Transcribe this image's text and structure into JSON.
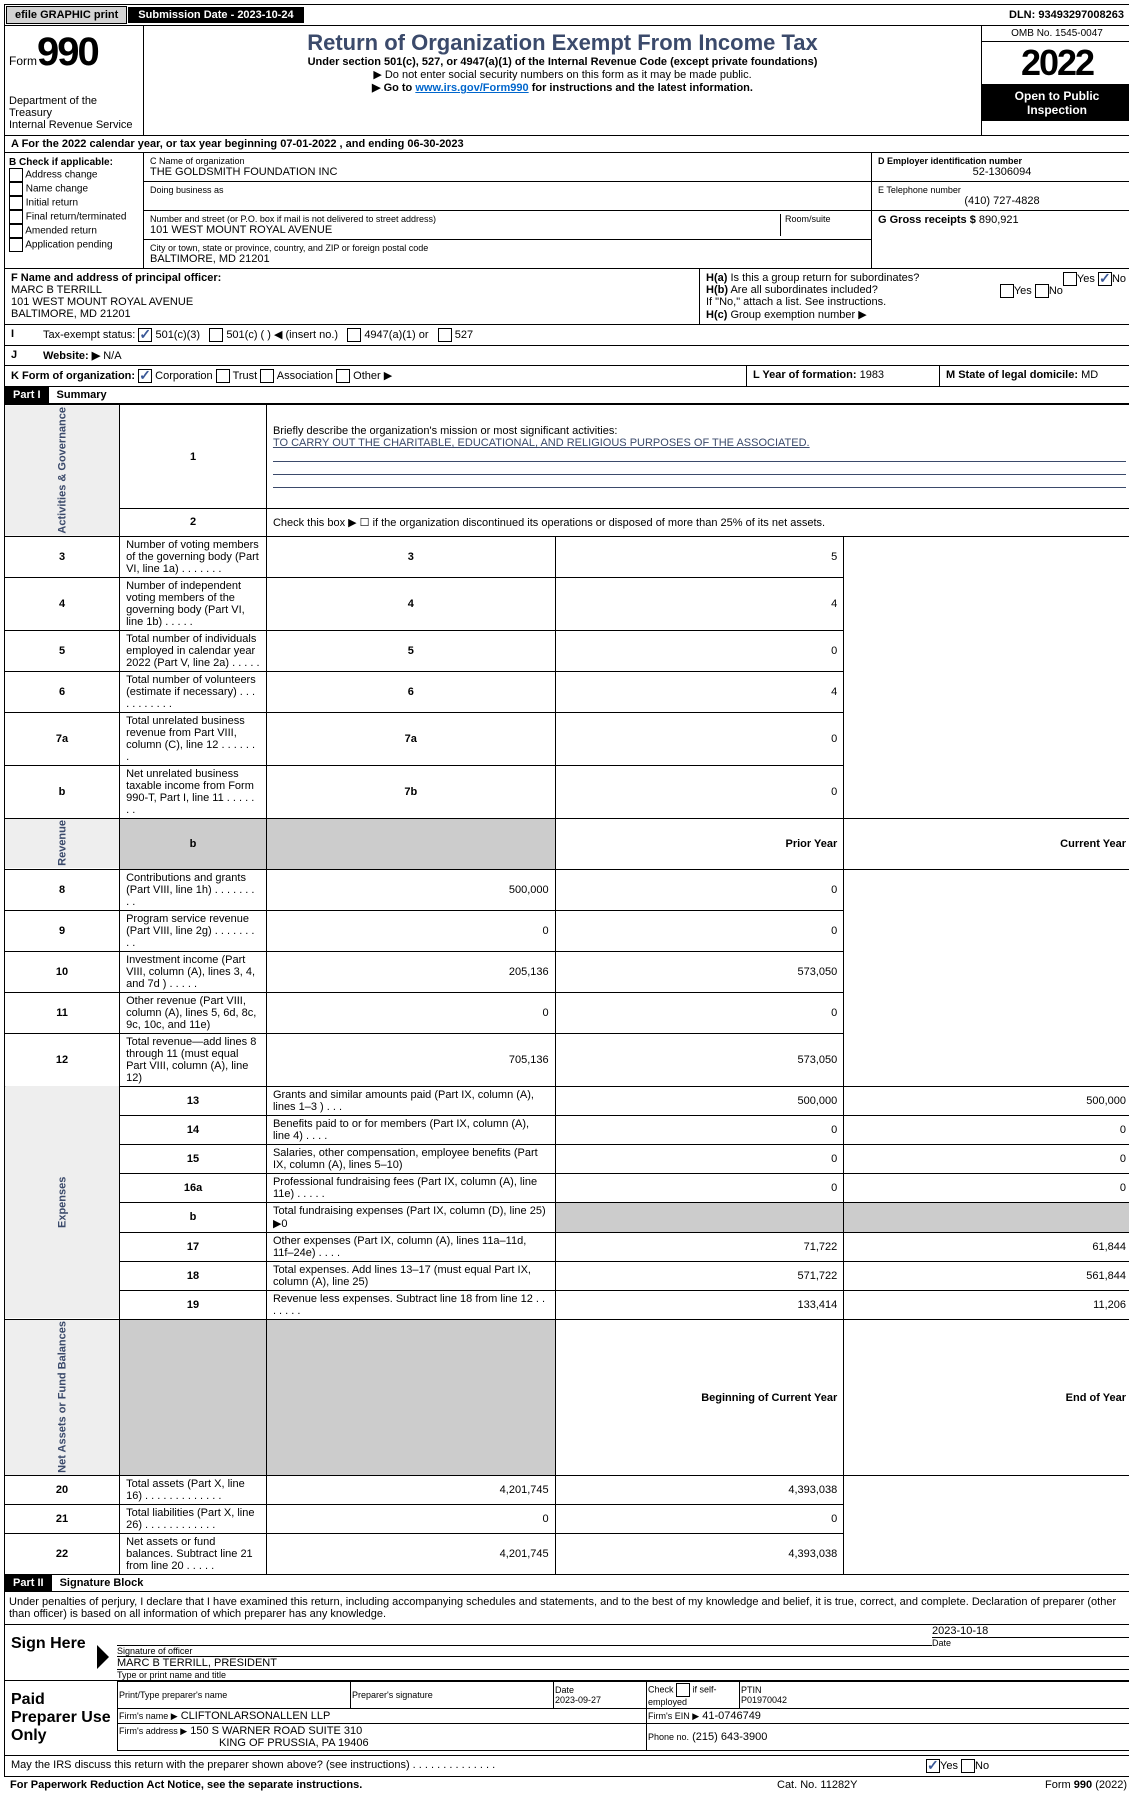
{
  "topbar": {
    "efile": "efile GRAPHIC print",
    "subdate_label": "Submission Date - 2023-10-24",
    "dln": "DLN: 93493297008263"
  },
  "header": {
    "form": "Form",
    "form_num": "990",
    "dept": "Department of the Treasury",
    "irs": "Internal Revenue Service",
    "title": "Return of Organization Exempt From Income Tax",
    "sub1": "Under section 501(c), 527, or 4947(a)(1) of the Internal Revenue Code (except private foundations)",
    "sub2": "▶ Do not enter social security numbers on this form as it may be made public.",
    "sub3a": "▶ Go to ",
    "sub3_link": "www.irs.gov/Form990",
    "sub3b": " for instructions and the latest information.",
    "omb": "OMB No. 1545-0047",
    "year": "2022",
    "public": "Open to Public Inspection"
  },
  "period": {
    "text_a": "A For the 2022 calendar year, or tax year beginning ",
    "begin": "07-01-2022",
    "text_b": " , and ending ",
    "end": "06-30-2023"
  },
  "section_b": {
    "header": "B Check if applicable:",
    "items": [
      "Address change",
      "Name change",
      "Initial return",
      "Final return/terminated",
      "Amended return",
      "Application pending"
    ]
  },
  "section_c": {
    "name_label": "C Name of organization",
    "name": "THE GOLDSMITH FOUNDATION INC",
    "dba": "Doing business as",
    "street_label": "Number and street (or P.O. box if mail is not delivered to street address)",
    "room": "Room/suite",
    "street": "101 WEST MOUNT ROYAL AVENUE",
    "city_label": "City or town, state or province, country, and ZIP or foreign postal code",
    "city": "BALTIMORE, MD  21201"
  },
  "section_d": {
    "ein_label": "D Employer identification number",
    "ein": "52-1306094"
  },
  "section_e": {
    "tel_label": "E Telephone number",
    "tel": "(410) 727-4828"
  },
  "section_g": {
    "label": "G Gross receipts $",
    "val": "890,921"
  },
  "section_f": {
    "label": "F Name and address of principal officer:",
    "name": "MARC B TERRILL",
    "addr1": "101 WEST MOUNT ROYAL AVENUE",
    "addr2": "BALTIMORE, MD  21201"
  },
  "section_h": {
    "a1": "H(a)",
    "a2": "Is this a group return for subordinates?",
    "b1": "H(b)",
    "b2": "Are all subordinates included?",
    "note": "If \"No,\" attach a list. See instructions.",
    "c1": "H(c)",
    "c2": "Group exemption number ▶",
    "yes": "Yes",
    "no": "No"
  },
  "section_i": {
    "label": "Tax-exempt status:",
    "opt1": "501(c)(3)",
    "opt2": "501(c) (    ) ◀ (insert no.)",
    "opt3": "4947(a)(1) or",
    "opt4": "527"
  },
  "section_j": {
    "label": "Website: ▶",
    "val": "N/A"
  },
  "section_k": {
    "label": "K Form of organization:",
    "opt1": "Corporation",
    "opt2": "Trust",
    "opt3": "Association",
    "opt4": "Other ▶"
  },
  "section_l": {
    "label": "L Year of formation:",
    "val": "1983"
  },
  "section_m": {
    "label": "M State of legal domicile:",
    "val": "MD"
  },
  "part1": {
    "header": "Part I",
    "title": "Summary",
    "line1_label": "Briefly describe the organization's mission or most significant activities:",
    "line1_val": "TO CARRY OUT THE CHARITABLE, EDUCATIONAL, AND RELIGIOUS PURPOSES OF THE ASSOCIATED.",
    "line2": "Check this box ▶ ☐  if the organization discontinued its operations or disposed of more than 25% of its net assets.",
    "sidelabels": {
      "gov": "Activities & Governance",
      "rev": "Revenue",
      "exp": "Expenses",
      "net": "Net Assets or Fund Balances"
    },
    "col_prior": "Prior Year",
    "col_current": "Current Year",
    "col_begin": "Beginning of Current Year",
    "col_end": "End of Year",
    "rows_gov": [
      {
        "n": "3",
        "t": "Number of voting members of the governing body (Part VI, line 1a)    .    .    .    .    .    .    .",
        "ln": "3",
        "v": "5"
      },
      {
        "n": "4",
        "t": "Number of independent voting members of the governing body (Part VI, line 1b)    .    .    .    .    .",
        "ln": "4",
        "v": "4"
      },
      {
        "n": "5",
        "t": "Total number of individuals employed in calendar year 2022 (Part V, line 2a)    .    .    .    .    .",
        "ln": "5",
        "v": "0"
      },
      {
        "n": "6",
        "t": "Total number of volunteers (estimate if necessary)    .    .    .    .    .    .    .    .    .    .    .",
        "ln": "6",
        "v": "4"
      },
      {
        "n": "7a",
        "t": "Total unrelated business revenue from Part VIII, column (C), line 12    .    .    .    .    .    .    .",
        "ln": "7a",
        "v": "0"
      },
      {
        "n": "b",
        "t": "Net unrelated business taxable income from Form 990-T, Part I, line 11    .    .    .    .    .    .    .",
        "ln": "7b",
        "v": "0"
      }
    ],
    "rows_rev": [
      {
        "n": "8",
        "t": "Contributions and grants (Part VIII, line 1h)    .    .    .    .    .    .    .    .    .",
        "p": "500,000",
        "c": "0"
      },
      {
        "n": "9",
        "t": "Program service revenue (Part VIII, line 2g)    .    .    .    .    .    .    .    .    .",
        "p": "0",
        "c": "0"
      },
      {
        "n": "10",
        "t": "Investment income (Part VIII, column (A), lines 3, 4, and 7d )    .    .    .    .    .",
        "p": "205,136",
        "c": "573,050"
      },
      {
        "n": "11",
        "t": "Other revenue (Part VIII, column (A), lines 5, 6d, 8c, 9c, 10c, and 11e)",
        "p": "0",
        "c": "0"
      },
      {
        "n": "12",
        "t": "Total revenue—add lines 8 through 11 (must equal Part VIII, column (A), line 12)",
        "p": "705,136",
        "c": "573,050"
      }
    ],
    "rows_exp": [
      {
        "n": "13",
        "t": "Grants and similar amounts paid (Part IX, column (A), lines 1–3 )    .    .    .",
        "p": "500,000",
        "c": "500,000"
      },
      {
        "n": "14",
        "t": "Benefits paid to or for members (Part IX, column (A), line 4)    .    .    .    .",
        "p": "0",
        "c": "0"
      },
      {
        "n": "15",
        "t": "Salaries, other compensation, employee benefits (Part IX, column (A), lines 5–10)",
        "p": "0",
        "c": "0"
      },
      {
        "n": "16a",
        "t": "Professional fundraising fees (Part IX, column (A), line 11e)    .    .    .    .    .",
        "p": "0",
        "c": "0"
      },
      {
        "n": "b",
        "t": "Total fundraising expenses (Part IX, column (D), line 25) ▶0",
        "p": "",
        "c": "",
        "shaded": true
      },
      {
        "n": "17",
        "t": "Other expenses (Part IX, column (A), lines 11a–11d, 11f–24e)    .    .    .    .",
        "p": "71,722",
        "c": "61,844"
      },
      {
        "n": "18",
        "t": "Total expenses. Add lines 13–17 (must equal Part IX, column (A), line 25)",
        "p": "571,722",
        "c": "561,844"
      },
      {
        "n": "19",
        "t": "Revenue less expenses. Subtract line 18 from line 12    .    .    .    .    .    .    .",
        "p": "133,414",
        "c": "11,206"
      }
    ],
    "rows_net": [
      {
        "n": "20",
        "t": "Total assets (Part X, line 16)    .    .    .    .    .    .    .    .    .    .    .    .    .",
        "p": "4,201,745",
        "c": "4,393,038"
      },
      {
        "n": "21",
        "t": "Total liabilities (Part X, line 26)    .    .    .    .    .    .    .    .    .    .    .    .",
        "p": "0",
        "c": "0"
      },
      {
        "n": "22",
        "t": "Net assets or fund balances. Subtract line 21 from line 20    .    .    .    .    .",
        "p": "4,201,745",
        "c": "4,393,038"
      }
    ]
  },
  "part2": {
    "header": "Part II",
    "title": "Signature Block",
    "decl": "Under penalties of perjury, I declare that I have examined this return, including accompanying schedules and statements, and to the best of my knowledge and belief, it is true, correct, and complete. Declaration of preparer (other than officer) is based on all information of which preparer has any knowledge."
  },
  "sign": {
    "label": "Sign Here",
    "sig_label": "Signature of officer",
    "date_label": "Date",
    "date": "2023-10-18",
    "name": "MARC B TERRILL, PRESIDENT",
    "name_label": "Type or print name and title"
  },
  "paid": {
    "label": "Paid Preparer Use Only",
    "col1": "Print/Type preparer's name",
    "col2": "Preparer's signature",
    "col3": "Date",
    "date": "2023-09-27",
    "col4a": "Check",
    "col4b": "if self-employed",
    "col5": "PTIN",
    "ptin": "P01970042",
    "firm_label": "Firm's name    ▶",
    "firm": "CLIFTONLARSONALLEN LLP",
    "ein_label": "Firm's EIN ▶",
    "ein": "41-0746749",
    "addr_label": "Firm's address ▶",
    "addr1": "150 S WARNER ROAD SUITE 310",
    "addr2": "KING OF PRUSSIA, PA  19406",
    "phone_label": "Phone no.",
    "phone": "(215) 643-3900"
  },
  "footer": {
    "discuss": "May the IRS discuss this return with the preparer shown above? (see instructions)    .    .    .    .    .    .    .    .    .    .    .    .    .    .",
    "yes": "Yes",
    "no": "No",
    "pra": "For Paperwork Reduction Act Notice, see the separate instructions.",
    "cat": "Cat. No. 11282Y",
    "form": "Form 990 (2022)"
  }
}
